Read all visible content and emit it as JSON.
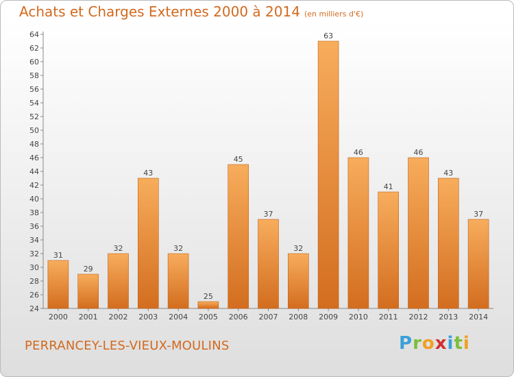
{
  "title": "Achats et Charges Externes 2000 à 2014",
  "unit": "(en milliers d'€)",
  "commune": "PERRANCEY-LES-VIEUX-MOULINS",
  "logo": {
    "letters": [
      "P",
      "r",
      "o",
      "x",
      "i",
      "t",
      "i"
    ],
    "colors": [
      "#3aa0d8",
      "#7bbf3a",
      "#f0a020",
      "#d03030",
      "#3aa0d8",
      "#7bbf3a",
      "#f0a020"
    ]
  },
  "colors": {
    "bar_light": "#f5a852",
    "bar_dark": "#d2691e",
    "accent": "#d2691e"
  },
  "chart_data": {
    "type": "bar",
    "title": "Achats et Charges Externes 2000 à 2014",
    "ylabel": "(en milliers d'€)",
    "categories": [
      "2000",
      "2001",
      "2002",
      "2003",
      "2004",
      "2005",
      "2006",
      "2007",
      "2008",
      "2009",
      "2010",
      "2011",
      "2012",
      "2013",
      "2014"
    ],
    "values": [
      31,
      29,
      32,
      43,
      32,
      25,
      45,
      37,
      32,
      63,
      46,
      41,
      46,
      43,
      37
    ],
    "value_labels": [
      "31",
      "29",
      "32",
      "43",
      "32",
      "25",
      "45",
      "37",
      "32",
      "63",
      "46",
      "41",
      "46",
      "43",
      "37"
    ],
    "ylim": [
      24,
      64
    ],
    "yticks": [
      "24",
      "26",
      "28",
      "30",
      "32",
      "34",
      "36",
      "38",
      "40",
      "42",
      "44",
      "46",
      "48",
      "50",
      "52",
      "54",
      "56",
      "58",
      "60",
      "62",
      "64"
    ],
    "grid": false,
    "legend": "none"
  }
}
